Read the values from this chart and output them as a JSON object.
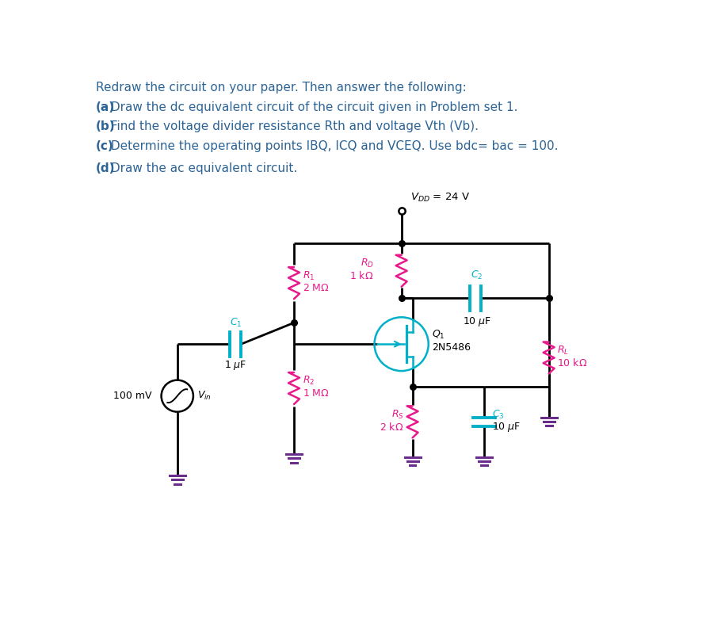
{
  "text_color": "#2c6496",
  "bg_color": "#ffffff",
  "circuit_line_color": "#000000",
  "resistor_color": "#e8198b",
  "capacitor_color": "#00b0c8",
  "transistor_color": "#00b0c8",
  "ground_color": "#6b2d8b",
  "title": "Redraw the circuit on your paper. Then answer the following:",
  "line_a": "(a) Draw the dc equivalent circuit of the circuit given in Problem set 1.",
  "line_b": "(b) Find the voltage divider resistance Rth and voltage Vth (Vb).",
  "line_c": "(c) Determine the operating points IBQ, ICQ and VCEQ. Use bdc= bac = 100.",
  "line_d": "(d) Draw the ac equivalent circuit."
}
